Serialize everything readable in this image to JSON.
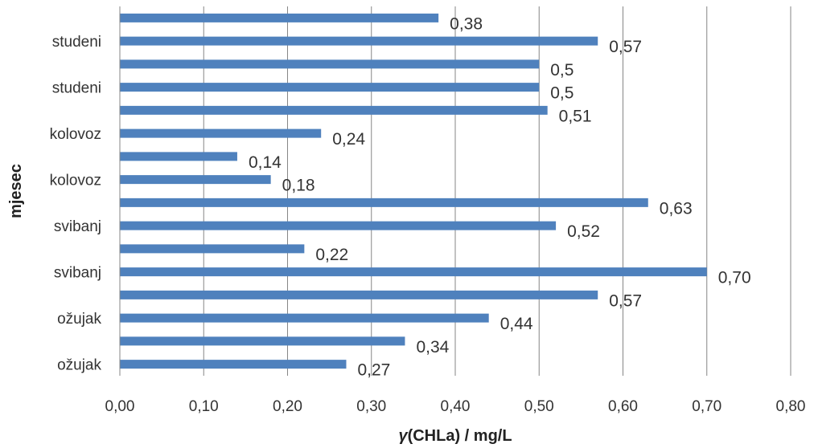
{
  "chart_data": {
    "type": "bar",
    "orientation": "horizontal",
    "xlabel_prefix": "γ",
    "xlabel_rest": "(CHLa) / mg/L",
    "ylabel": "mjesec",
    "xlim": [
      0,
      0.8
    ],
    "x_ticks": [
      "0,00",
      "0,10",
      "0,20",
      "0,30",
      "0,40",
      "0,50",
      "0,60",
      "0,70",
      "0,80"
    ],
    "grid": "vertical",
    "bar_color": "#4F81BD",
    "categories": [
      "ožujak",
      "",
      "ožujak",
      "",
      "svibanj",
      "",
      "svibanj",
      "",
      "kolovoz",
      "",
      "kolovoz",
      "",
      "studeni",
      "",
      "studeni",
      ""
    ],
    "values": [
      0.27,
      0.34,
      0.44,
      0.57,
      0.7,
      0.22,
      0.52,
      0.63,
      0.18,
      0.14,
      0.24,
      0.51,
      0.5,
      0.5,
      0.57,
      0.38
    ],
    "data_labels": [
      "0,27",
      "0,34",
      "0,44",
      "0,57",
      "0,70",
      "0,22",
      "0,52",
      "0,63",
      "0,18",
      "0,14",
      "0,24",
      "0,51",
      "0,5",
      "0,5",
      "0,57",
      "0,38"
    ]
  }
}
